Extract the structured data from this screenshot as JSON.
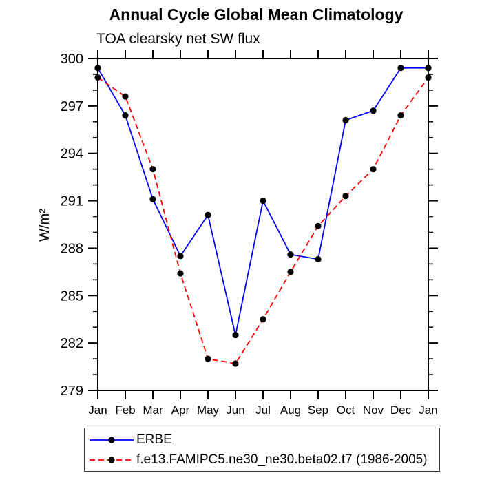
{
  "chart_data": {
    "type": "line",
    "title": "Annual Cycle Global Mean Climatology",
    "subtitle": "TOA clearsky net SW flux",
    "xlabel": "",
    "ylabel": "W/m²",
    "categories": [
      "Jan",
      "Feb",
      "Mar",
      "Apr",
      "May",
      "Jun",
      "Jul",
      "Aug",
      "Sep",
      "Oct",
      "Nov",
      "Dec",
      "Jan"
    ],
    "ylim": [
      279,
      300
    ],
    "yticks": [
      279,
      282,
      285,
      288,
      291,
      294,
      297,
      300
    ],
    "ytick_minor_interval": 1,
    "grid": false,
    "legend_position": "bottom",
    "axis_color": "#000000",
    "text_color": "#000000",
    "series": [
      {
        "name": "ERBE",
        "color": "#0000ff",
        "line_style": "solid",
        "dash": "none",
        "marker": "circle",
        "marker_color": "#000000",
        "values": [
          299.4,
          296.4,
          291.1,
          287.5,
          290.1,
          282.5,
          291.0,
          287.6,
          287.3,
          296.1,
          296.7,
          299.4,
          299.4
        ]
      },
      {
        "name": "f.e13.FAMIPC5.ne30_ne30.beta02.t7 (1986-2005)",
        "color": "#ff0000",
        "line_style": "dashed",
        "dash": "8 5",
        "marker": "circle",
        "marker_color": "#000000",
        "values": [
          298.8,
          297.6,
          293.0,
          286.4,
          281.0,
          280.7,
          283.5,
          286.5,
          289.4,
          291.3,
          293.0,
          296.4,
          298.8
        ]
      }
    ]
  }
}
